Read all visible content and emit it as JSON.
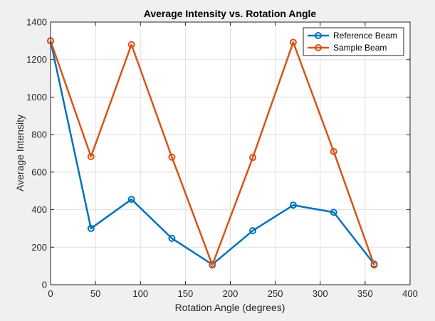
{
  "chart_data": {
    "type": "line",
    "title": "Average Intensity vs. Rotation Angle",
    "xlabel": "Rotation Angle (degrees)",
    "ylabel": "Average Intensity",
    "xlim": [
      0,
      400
    ],
    "ylim": [
      0,
      1400
    ],
    "xticks": [
      0,
      50,
      100,
      150,
      200,
      250,
      300,
      350,
      400
    ],
    "yticks": [
      0,
      200,
      400,
      600,
      800,
      1000,
      1200,
      1400
    ],
    "grid": true,
    "legend_position": "top-right",
    "x": [
      0,
      45,
      90,
      135,
      180,
      225,
      270,
      315,
      360
    ],
    "series": [
      {
        "name": "Reference Beam",
        "color": "#0072BD",
        "marker": "circle",
        "values": [
          1300,
          300,
          455,
          247,
          108,
          288,
          424,
          386,
          110
        ]
      },
      {
        "name": "Sample Beam",
        "color": "#D95319",
        "marker": "circle",
        "values": [
          1300,
          683,
          1280,
          680,
          105,
          678,
          1292,
          710,
          105
        ]
      }
    ]
  }
}
